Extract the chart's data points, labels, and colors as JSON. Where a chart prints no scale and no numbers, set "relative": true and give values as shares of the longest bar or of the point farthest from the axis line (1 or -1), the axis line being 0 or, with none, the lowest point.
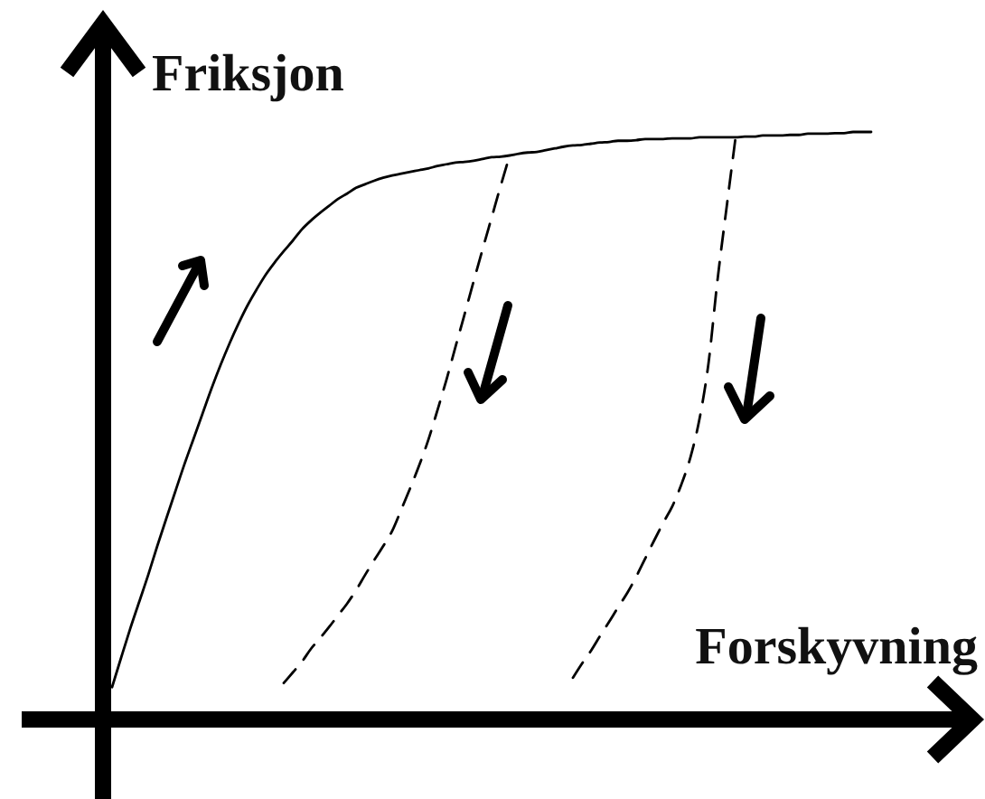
{
  "chart_data": {
    "type": "line",
    "relative": true,
    "xlabel": "Forskyvning",
    "ylabel": "Friksjon",
    "categories": [
      null,
      null,
      null,
      null,
      null,
      null,
      null,
      null,
      null,
      null,
      null,
      null,
      null,
      null,
      null,
      null,
      null,
      null,
      null,
      null,
      null,
      null,
      null,
      null,
      null,
      null,
      null,
      null,
      null,
      null,
      null,
      null,
      null,
      null,
      null,
      null,
      null,
      null,
      null,
      null,
      null,
      null,
      null,
      null,
      null,
      null,
      null,
      null,
      null,
      null,
      null,
      null,
      null,
      null,
      null,
      null,
      null,
      null,
      null,
      null,
      null,
      null,
      null,
      null,
      null,
      null,
      null,
      null,
      null,
      null,
      null,
      null,
      null,
      null,
      null,
      null,
      null,
      null,
      null,
      null,
      null,
      null,
      null,
      null,
      null
    ],
    "series": [
      {
        "color": "#000000",
        "line_style": "solid",
        "values": [
          0.055,
          0.105,
          0.154,
          0.2,
          0.246,
          0.295,
          0.342,
          0.388,
          0.434,
          0.477,
          0.52,
          0.563,
          0.603,
          0.64,
          0.674,
          0.705,
          0.732,
          0.757,
          0.778,
          0.797,
          0.815,
          0.834,
          0.849,
          0.862,
          0.874,
          0.886,
          0.895,
          0.905,
          0.911,
          0.917,
          0.922,
          0.926,
          0.929,
          0.932,
          0.935,
          0.938,
          0.942,
          0.945,
          0.948,
          0.949,
          0.951,
          0.954,
          0.957,
          0.958,
          0.96,
          0.963,
          0.965,
          0.966,
          0.969,
          0.972,
          0.975,
          0.977,
          0.978,
          0.98,
          0.982,
          0.983,
          0.985,
          0.985,
          0.986,
          0.988,
          0.988,
          0.988,
          0.989,
          0.989,
          0.989,
          0.991,
          0.991,
          0.991,
          0.991,
          0.991,
          0.992,
          0.992,
          0.994,
          0.994,
          0.994,
          0.995,
          0.995,
          0.997,
          0.997,
          0.997,
          0.998,
          0.998,
          1,
          1,
          1
        ]
      },
      {
        "color": "#000000",
        "line_style": "dashed",
        "values": [
          null,
          null,
          null,
          null,
          null,
          null,
          null,
          null,
          null,
          null,
          null,
          null,
          null,
          null,
          null,
          null,
          null,
          null,
          null,
          0.062,
          0.08,
          0.098,
          0.12,
          0.138,
          0.157,
          0.177,
          0.197,
          0.22,
          0.246,
          0.271,
          0.295,
          0.321,
          0.357,
          0.394,
          0.433,
          0.476,
          0.526,
          0.578,
          0.634,
          0.689,
          0.745,
          0.8,
          0.854,
          0.908,
          0.96,
          null,
          null,
          null,
          null,
          null,
          null,
          null,
          null,
          null,
          null,
          null,
          null,
          null,
          null,
          null,
          null,
          null,
          null,
          null,
          null,
          null,
          null,
          null,
          null,
          null,
          null,
          null,
          null,
          null,
          null,
          null,
          null,
          null,
          null,
          null,
          null,
          null,
          null,
          null,
          null
        ]
      },
      {
        "color": "#000000",
        "line_style": "dashed",
        "values": [
          null,
          null,
          null,
          null,
          null,
          null,
          null,
          null,
          null,
          null,
          null,
          null,
          null,
          null,
          null,
          null,
          null,
          null,
          null,
          null,
          null,
          null,
          null,
          null,
          null,
          null,
          null,
          null,
          null,
          null,
          null,
          null,
          null,
          null,
          null,
          null,
          null,
          null,
          null,
          null,
          null,
          null,
          null,
          null,
          null,
          null,
          null,
          null,
          null,
          null,
          null,
          0.071,
          0.095,
          0.117,
          0.142,
          0.166,
          0.191,
          0.215,
          0.243,
          0.274,
          0.305,
          0.335,
          0.363,
          0.4,
          0.446,
          0.511,
          0.606,
          0.748,
          0.871,
          0.991,
          null,
          null,
          null,
          null,
          null,
          null,
          null,
          null,
          null,
          null,
          null,
          null,
          null,
          null,
          null
        ]
      }
    ]
  }
}
